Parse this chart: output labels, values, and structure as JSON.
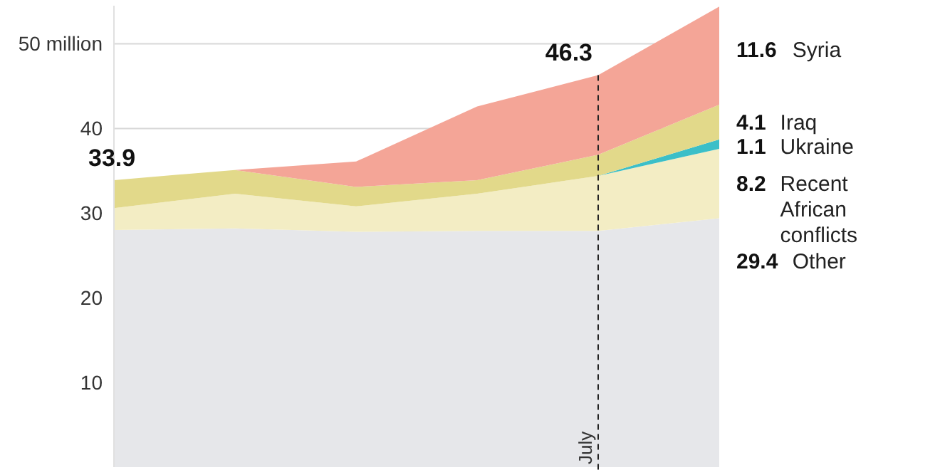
{
  "chart_data": {
    "type": "area",
    "stacked": true,
    "categories": [
      null,
      null,
      null,
      null,
      "July",
      null
    ],
    "ylim": [
      0,
      54.5
    ],
    "yticks": [
      {
        "value": 10,
        "label": "10"
      },
      {
        "value": 20,
        "label": "20"
      },
      {
        "value": 30,
        "label": "30"
      },
      {
        "value": 40,
        "label": "40"
      },
      {
        "value": 50,
        "label": "50 million"
      }
    ],
    "grid": "y",
    "series": [
      {
        "name": "Other",
        "color": "#e6e7ea",
        "values": [
          28.0,
          28.2,
          27.8,
          27.9,
          27.9,
          29.4
        ],
        "value_labels": [
          null,
          null,
          null,
          null,
          null,
          "29.4"
        ]
      },
      {
        "name": "Recent African conflicts",
        "color": "#f3edc4",
        "values": [
          2.6,
          4.1,
          3.0,
          4.4,
          6.5,
          8.2
        ],
        "value_labels": [
          null,
          null,
          null,
          null,
          null,
          "8.2"
        ]
      },
      {
        "name": "Ukraine",
        "color": "#3bbfc8",
        "values": [
          0,
          0,
          0,
          0,
          0,
          1.1
        ],
        "value_labels": [
          null,
          null,
          null,
          null,
          null,
          "1.1"
        ]
      },
      {
        "name": "Iraq",
        "color": "#e2d98a",
        "values": [
          3.3,
          2.8,
          2.3,
          1.6,
          2.5,
          4.1
        ],
        "value_labels": [
          null,
          null,
          null,
          null,
          null,
          "4.1"
        ]
      },
      {
        "name": "Syria",
        "color": "#f4a597",
        "values": [
          0,
          0,
          3.0,
          8.7,
          9.4,
          11.6
        ],
        "value_labels": [
          null,
          null,
          null,
          null,
          null,
          "11.6"
        ]
      }
    ],
    "ref_lines": [
      {
        "axis": "x",
        "value": "July",
        "line_style": "dashed"
      }
    ],
    "annotations": [
      "33.9",
      "46.3"
    ]
  }
}
